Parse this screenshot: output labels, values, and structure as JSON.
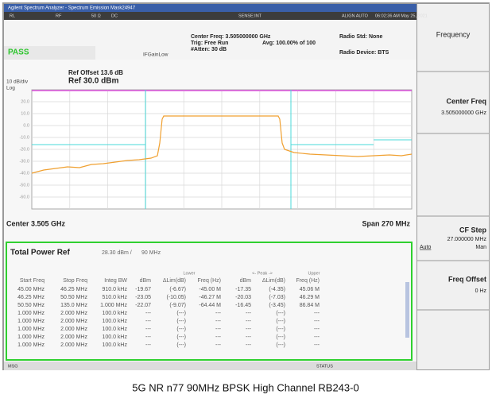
{
  "title_bar": "Agilent Spectrum Analyzer - Spectrum Emission Mask24947",
  "status_row": [
    "RL",
    "RF",
    "50 Ω",
    "DC",
    "SENSE:INT",
    "ALIGN AUTO",
    "06:02:36 AM May 25, 2021"
  ],
  "header": {
    "center_freq": "Center Freq: 3.505000000 GHz",
    "trig": "Trig: Free Run",
    "atten": "#Atten: 30 dB",
    "avg": "Avg: 100.00% of 100",
    "radio_std": "Radio Std: None",
    "radio_device": "Radio Device: BTS",
    "verdict": "PASS",
    "if_gain": "IFGainLow"
  },
  "plot": {
    "ref_offset": "Ref Offset 13.6 dB",
    "scale": "10 dB/div",
    "ref_level": "Ref 30.0 dBm",
    "log": "Log",
    "y_labels": [
      "20.0",
      "10.0",
      "0.0",
      "-10.0",
      "-20.0",
      "-30.0",
      "-40.0",
      "-50.0",
      "-60.0"
    ],
    "center": "Center 3.505 GHz",
    "span": "Span 270 MHz"
  },
  "table": {
    "title": "Total Power Ref",
    "ref_power": "28.30 dBm /",
    "ref_bw": "90 MHz",
    "groups": [
      "Lower",
      "<- Peak ->",
      "Upper"
    ],
    "columns": [
      "Start Freq",
      "Stop Freq",
      "Integ BW",
      "dBm",
      "ΔLim(dB)",
      "Freq (Hz)",
      "dBm",
      "ΔLim(dB)",
      "Freq (Hz)"
    ],
    "rows": [
      [
        "45.00 MHz",
        "46.25 MHz",
        "910.0 kHz",
        "-19.67",
        "(-6.67)",
        "-45.00 M",
        "-17.35",
        "(-4.35)",
        "45.06 M"
      ],
      [
        "46.25 MHz",
        "50.50 MHz",
        "510.0 kHz",
        "-23.05",
        "(-10.05)",
        "-46.27 M",
        "-20.03",
        "(-7.03)",
        "46.29 M"
      ],
      [
        "50.50 MHz",
        "135.0 MHz",
        "1.000 MHz",
        "-22.07",
        "(-9.07)",
        "-64.44 M",
        "-16.45",
        "(-3.45)",
        "86.84 M"
      ],
      [
        "1.000 MHz",
        "2.000 MHz",
        "100.0 kHz",
        "---",
        "(---)",
        "---",
        "---",
        "(---)",
        "---"
      ],
      [
        "1.000 MHz",
        "2.000 MHz",
        "100.0 kHz",
        "---",
        "(---)",
        "---",
        "---",
        "(---)",
        "---"
      ],
      [
        "1.000 MHz",
        "2.000 MHz",
        "100.0 kHz",
        "---",
        "(---)",
        "---",
        "---",
        "(---)",
        "---"
      ],
      [
        "1.000 MHz",
        "2.000 MHz",
        "100.0 kHz",
        "---",
        "(---)",
        "---",
        "---",
        "(---)",
        "---"
      ],
      [
        "1.000 MHz",
        "2.000 MHz",
        "100.0 kHz",
        "---",
        "(---)",
        "---",
        "---",
        "(---)",
        "---"
      ]
    ]
  },
  "status_bar": {
    "msg": "MSG",
    "status": "STATUS"
  },
  "softkeys": {
    "menu": "Frequency",
    "center_freq": "Center Freq",
    "center_freq_value": "3.505000000 GHz",
    "cf_step": "CF Step",
    "cf_step_value": "27.000000 MHz",
    "auto": "Auto",
    "man": "Man",
    "freq_offset": "Freq Offset",
    "freq_offset_value": "0 Hz"
  },
  "caption": "5G NR n77 90MHz BPSK High Channel RB243-0"
}
